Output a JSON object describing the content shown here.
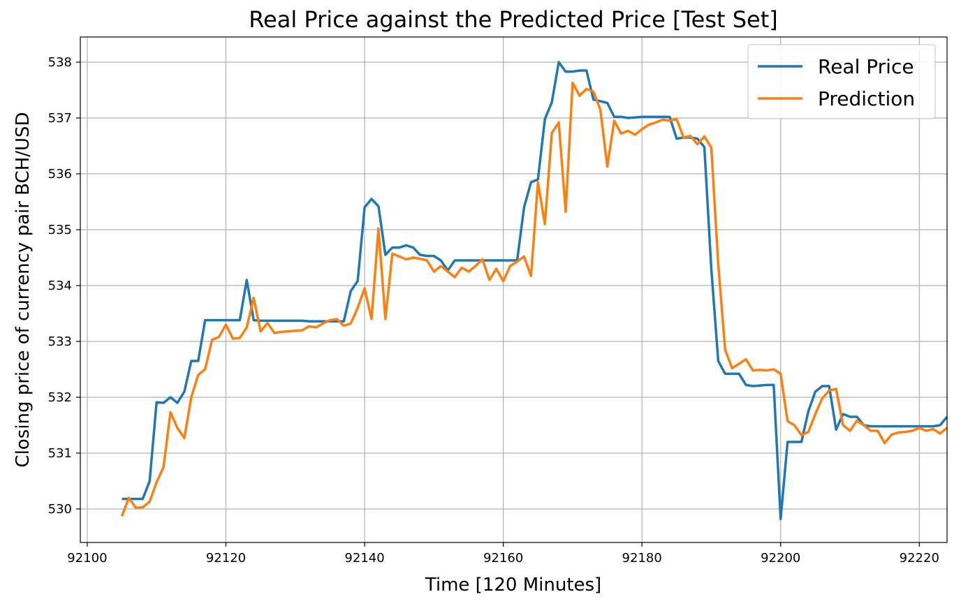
{
  "chart_data": {
    "type": "line",
    "title": "Real Price against the Predicted Price [Test Set]",
    "xlabel": "Time [120 Minutes]",
    "ylabel": "Closing price of currency pair BCH/USD",
    "xlim": [
      92099,
      92224
    ],
    "ylim": [
      529.4,
      538.45
    ],
    "xticks": [
      92100,
      92120,
      92140,
      92160,
      92180,
      92200,
      92220
    ],
    "yticks": [
      530,
      531,
      532,
      533,
      534,
      535,
      536,
      537,
      538
    ],
    "grid": true,
    "legend_position": "upper right",
    "series": [
      {
        "name": "Real Price",
        "color": "#1f77b4",
        "points": [
          [
            92105,
            530.18
          ],
          [
            92106,
            530.18
          ],
          [
            92107,
            530.18
          ],
          [
            92108,
            530.18
          ],
          [
            92109,
            530.5
          ],
          [
            92110,
            531.91
          ],
          [
            92111,
            531.9
          ],
          [
            92112,
            532.0
          ],
          [
            92113,
            531.9
          ],
          [
            92114,
            532.1
          ],
          [
            92115,
            532.65
          ],
          [
            92116,
            532.65
          ],
          [
            92117,
            533.38
          ],
          [
            92118,
            533.38
          ],
          [
            92119,
            533.38
          ],
          [
            92120,
            533.38
          ],
          [
            92121,
            533.38
          ],
          [
            92122,
            533.38
          ],
          [
            92123,
            534.1
          ],
          [
            92124,
            533.38
          ],
          [
            92125,
            533.37
          ],
          [
            92126,
            533.37
          ],
          [
            92127,
            533.37
          ],
          [
            92128,
            533.37
          ],
          [
            92129,
            533.37
          ],
          [
            92130,
            533.37
          ],
          [
            92131,
            533.37
          ],
          [
            92132,
            533.36
          ],
          [
            92133,
            533.36
          ],
          [
            92134,
            533.36
          ],
          [
            92135,
            533.36
          ],
          [
            92136,
            533.36
          ],
          [
            92137,
            533.36
          ],
          [
            92138,
            533.9
          ],
          [
            92139,
            534.08
          ],
          [
            92140,
            535.4
          ],
          [
            92141,
            535.55
          ],
          [
            92142,
            535.42
          ],
          [
            92143,
            534.55
          ],
          [
            92144,
            534.68
          ],
          [
            92145,
            534.68
          ],
          [
            92146,
            534.72
          ],
          [
            92147,
            534.68
          ],
          [
            92148,
            534.55
          ],
          [
            92149,
            534.53
          ],
          [
            92150,
            534.53
          ],
          [
            92151,
            534.45
          ],
          [
            92152,
            534.27
          ],
          [
            92153,
            534.45
          ],
          [
            92154,
            534.45
          ],
          [
            92155,
            534.45
          ],
          [
            92156,
            534.45
          ],
          [
            92157,
            534.45
          ],
          [
            92158,
            534.45
          ],
          [
            92159,
            534.45
          ],
          [
            92160,
            534.45
          ],
          [
            92161,
            534.45
          ],
          [
            92162,
            534.45
          ],
          [
            92163,
            535.4
          ],
          [
            92164,
            535.85
          ],
          [
            92165,
            535.9
          ],
          [
            92166,
            536.98
          ],
          [
            92167,
            537.28
          ],
          [
            92168,
            538.0
          ],
          [
            92169,
            537.83
          ],
          [
            92170,
            537.83
          ],
          [
            92171,
            537.85
          ],
          [
            92172,
            537.85
          ],
          [
            92173,
            537.33
          ],
          [
            92174,
            537.3
          ],
          [
            92175,
            537.27
          ],
          [
            92176,
            537.02
          ],
          [
            92177,
            537.02
          ],
          [
            92178,
            537.0
          ],
          [
            92179,
            537.01
          ],
          [
            92180,
            537.02
          ],
          [
            92181,
            537.02
          ],
          [
            92182,
            537.02
          ],
          [
            92183,
            537.02
          ],
          [
            92184,
            537.02
          ],
          [
            92185,
            536.63
          ],
          [
            92186,
            536.65
          ],
          [
            92187,
            536.65
          ],
          [
            92188,
            536.63
          ],
          [
            92189,
            536.48
          ],
          [
            92190,
            534.3
          ],
          [
            92191,
            532.65
          ],
          [
            92192,
            532.42
          ],
          [
            92193,
            532.42
          ],
          [
            92194,
            532.42
          ],
          [
            92195,
            532.22
          ],
          [
            92196,
            532.2
          ],
          [
            92197,
            532.21
          ],
          [
            92198,
            532.22
          ],
          [
            92199,
            532.22
          ],
          [
            92200,
            529.82
          ],
          [
            92201,
            531.2
          ],
          [
            92202,
            531.2
          ],
          [
            92203,
            531.2
          ],
          [
            92204,
            531.75
          ],
          [
            92205,
            532.1
          ],
          [
            92206,
            532.2
          ],
          [
            92207,
            532.2
          ],
          [
            92208,
            531.42
          ],
          [
            92209,
            531.7
          ],
          [
            92210,
            531.65
          ],
          [
            92211,
            531.65
          ],
          [
            92212,
            531.5
          ],
          [
            92213,
            531.48
          ],
          [
            92214,
            531.48
          ],
          [
            92215,
            531.48
          ],
          [
            92216,
            531.48
          ],
          [
            92217,
            531.48
          ],
          [
            92218,
            531.48
          ],
          [
            92219,
            531.48
          ],
          [
            92220,
            531.48
          ],
          [
            92221,
            531.48
          ],
          [
            92222,
            531.48
          ],
          [
            92223,
            531.5
          ],
          [
            92224,
            531.65
          ]
        ]
      },
      {
        "name": "Prediction",
        "color": "#ff7f0e",
        "points": [
          [
            92105,
            529.87
          ],
          [
            92106,
            530.2
          ],
          [
            92107,
            530.02
          ],
          [
            92108,
            530.03
          ],
          [
            92109,
            530.13
          ],
          [
            92110,
            530.48
          ],
          [
            92111,
            530.75
          ],
          [
            92112,
            531.73
          ],
          [
            92113,
            531.45
          ],
          [
            92114,
            531.27
          ],
          [
            92115,
            532.0
          ],
          [
            92116,
            532.4
          ],
          [
            92117,
            532.5
          ],
          [
            92118,
            533.03
          ],
          [
            92119,
            533.08
          ],
          [
            92120,
            533.3
          ],
          [
            92121,
            533.05
          ],
          [
            92122,
            533.06
          ],
          [
            92123,
            533.25
          ],
          [
            92124,
            533.78
          ],
          [
            92125,
            533.18
          ],
          [
            92126,
            533.33
          ],
          [
            92127,
            533.15
          ],
          [
            92128,
            533.17
          ],
          [
            92129,
            533.18
          ],
          [
            92130,
            533.19
          ],
          [
            92131,
            533.2
          ],
          [
            92132,
            533.27
          ],
          [
            92133,
            533.25
          ],
          [
            92134,
            533.32
          ],
          [
            92135,
            533.38
          ],
          [
            92136,
            533.4
          ],
          [
            92137,
            533.28
          ],
          [
            92138,
            533.32
          ],
          [
            92139,
            533.6
          ],
          [
            92140,
            533.95
          ],
          [
            92141,
            533.4
          ],
          [
            92142,
            535.02
          ],
          [
            92143,
            533.4
          ],
          [
            92144,
            534.57
          ],
          [
            92145,
            534.52
          ],
          [
            92146,
            534.47
          ],
          [
            92147,
            534.5
          ],
          [
            92148,
            534.48
          ],
          [
            92149,
            534.45
          ],
          [
            92150,
            534.25
          ],
          [
            92151,
            534.35
          ],
          [
            92152,
            534.25
          ],
          [
            92153,
            534.15
          ],
          [
            92154,
            534.32
          ],
          [
            92155,
            534.25
          ],
          [
            92156,
            534.35
          ],
          [
            92157,
            534.47
          ],
          [
            92158,
            534.1
          ],
          [
            92159,
            534.3
          ],
          [
            92160,
            534.08
          ],
          [
            92161,
            534.35
          ],
          [
            92162,
            534.43
          ],
          [
            92163,
            534.52
          ],
          [
            92164,
            534.17
          ],
          [
            92165,
            535.85
          ],
          [
            92166,
            535.1
          ],
          [
            92167,
            536.73
          ],
          [
            92168,
            536.92
          ],
          [
            92169,
            535.32
          ],
          [
            92170,
            537.63
          ],
          [
            92171,
            537.4
          ],
          [
            92172,
            537.52
          ],
          [
            92173,
            537.47
          ],
          [
            92174,
            537.15
          ],
          [
            92175,
            536.13
          ],
          [
            92176,
            536.95
          ],
          [
            92177,
            536.72
          ],
          [
            92178,
            536.77
          ],
          [
            92179,
            536.7
          ],
          [
            92180,
            536.8
          ],
          [
            92181,
            536.88
          ],
          [
            92182,
            536.92
          ],
          [
            92183,
            536.97
          ],
          [
            92184,
            536.95
          ],
          [
            92185,
            536.98
          ],
          [
            92186,
            536.65
          ],
          [
            92187,
            536.68
          ],
          [
            92188,
            536.53
          ],
          [
            92189,
            536.67
          ],
          [
            92190,
            536.47
          ],
          [
            92191,
            534.38
          ],
          [
            92192,
            532.85
          ],
          [
            92193,
            532.52
          ],
          [
            92194,
            532.6
          ],
          [
            92195,
            532.68
          ],
          [
            92196,
            532.48
          ],
          [
            92197,
            532.49
          ],
          [
            92198,
            532.48
          ],
          [
            92199,
            532.5
          ],
          [
            92200,
            532.42
          ],
          [
            92201,
            531.57
          ],
          [
            92202,
            531.5
          ],
          [
            92203,
            531.32
          ],
          [
            92204,
            531.38
          ],
          [
            92205,
            531.7
          ],
          [
            92206,
            531.98
          ],
          [
            92207,
            532.12
          ],
          [
            92208,
            532.15
          ],
          [
            92209,
            531.5
          ],
          [
            92210,
            531.4
          ],
          [
            92211,
            531.58
          ],
          [
            92212,
            531.5
          ],
          [
            92213,
            531.4
          ],
          [
            92214,
            531.4
          ],
          [
            92215,
            531.18
          ],
          [
            92216,
            531.33
          ],
          [
            92217,
            531.37
          ],
          [
            92218,
            531.38
          ],
          [
            92219,
            531.4
          ],
          [
            92220,
            531.45
          ],
          [
            92221,
            531.4
          ],
          [
            92222,
            531.43
          ],
          [
            92223,
            531.35
          ],
          [
            92224,
            531.45
          ]
        ]
      }
    ]
  }
}
